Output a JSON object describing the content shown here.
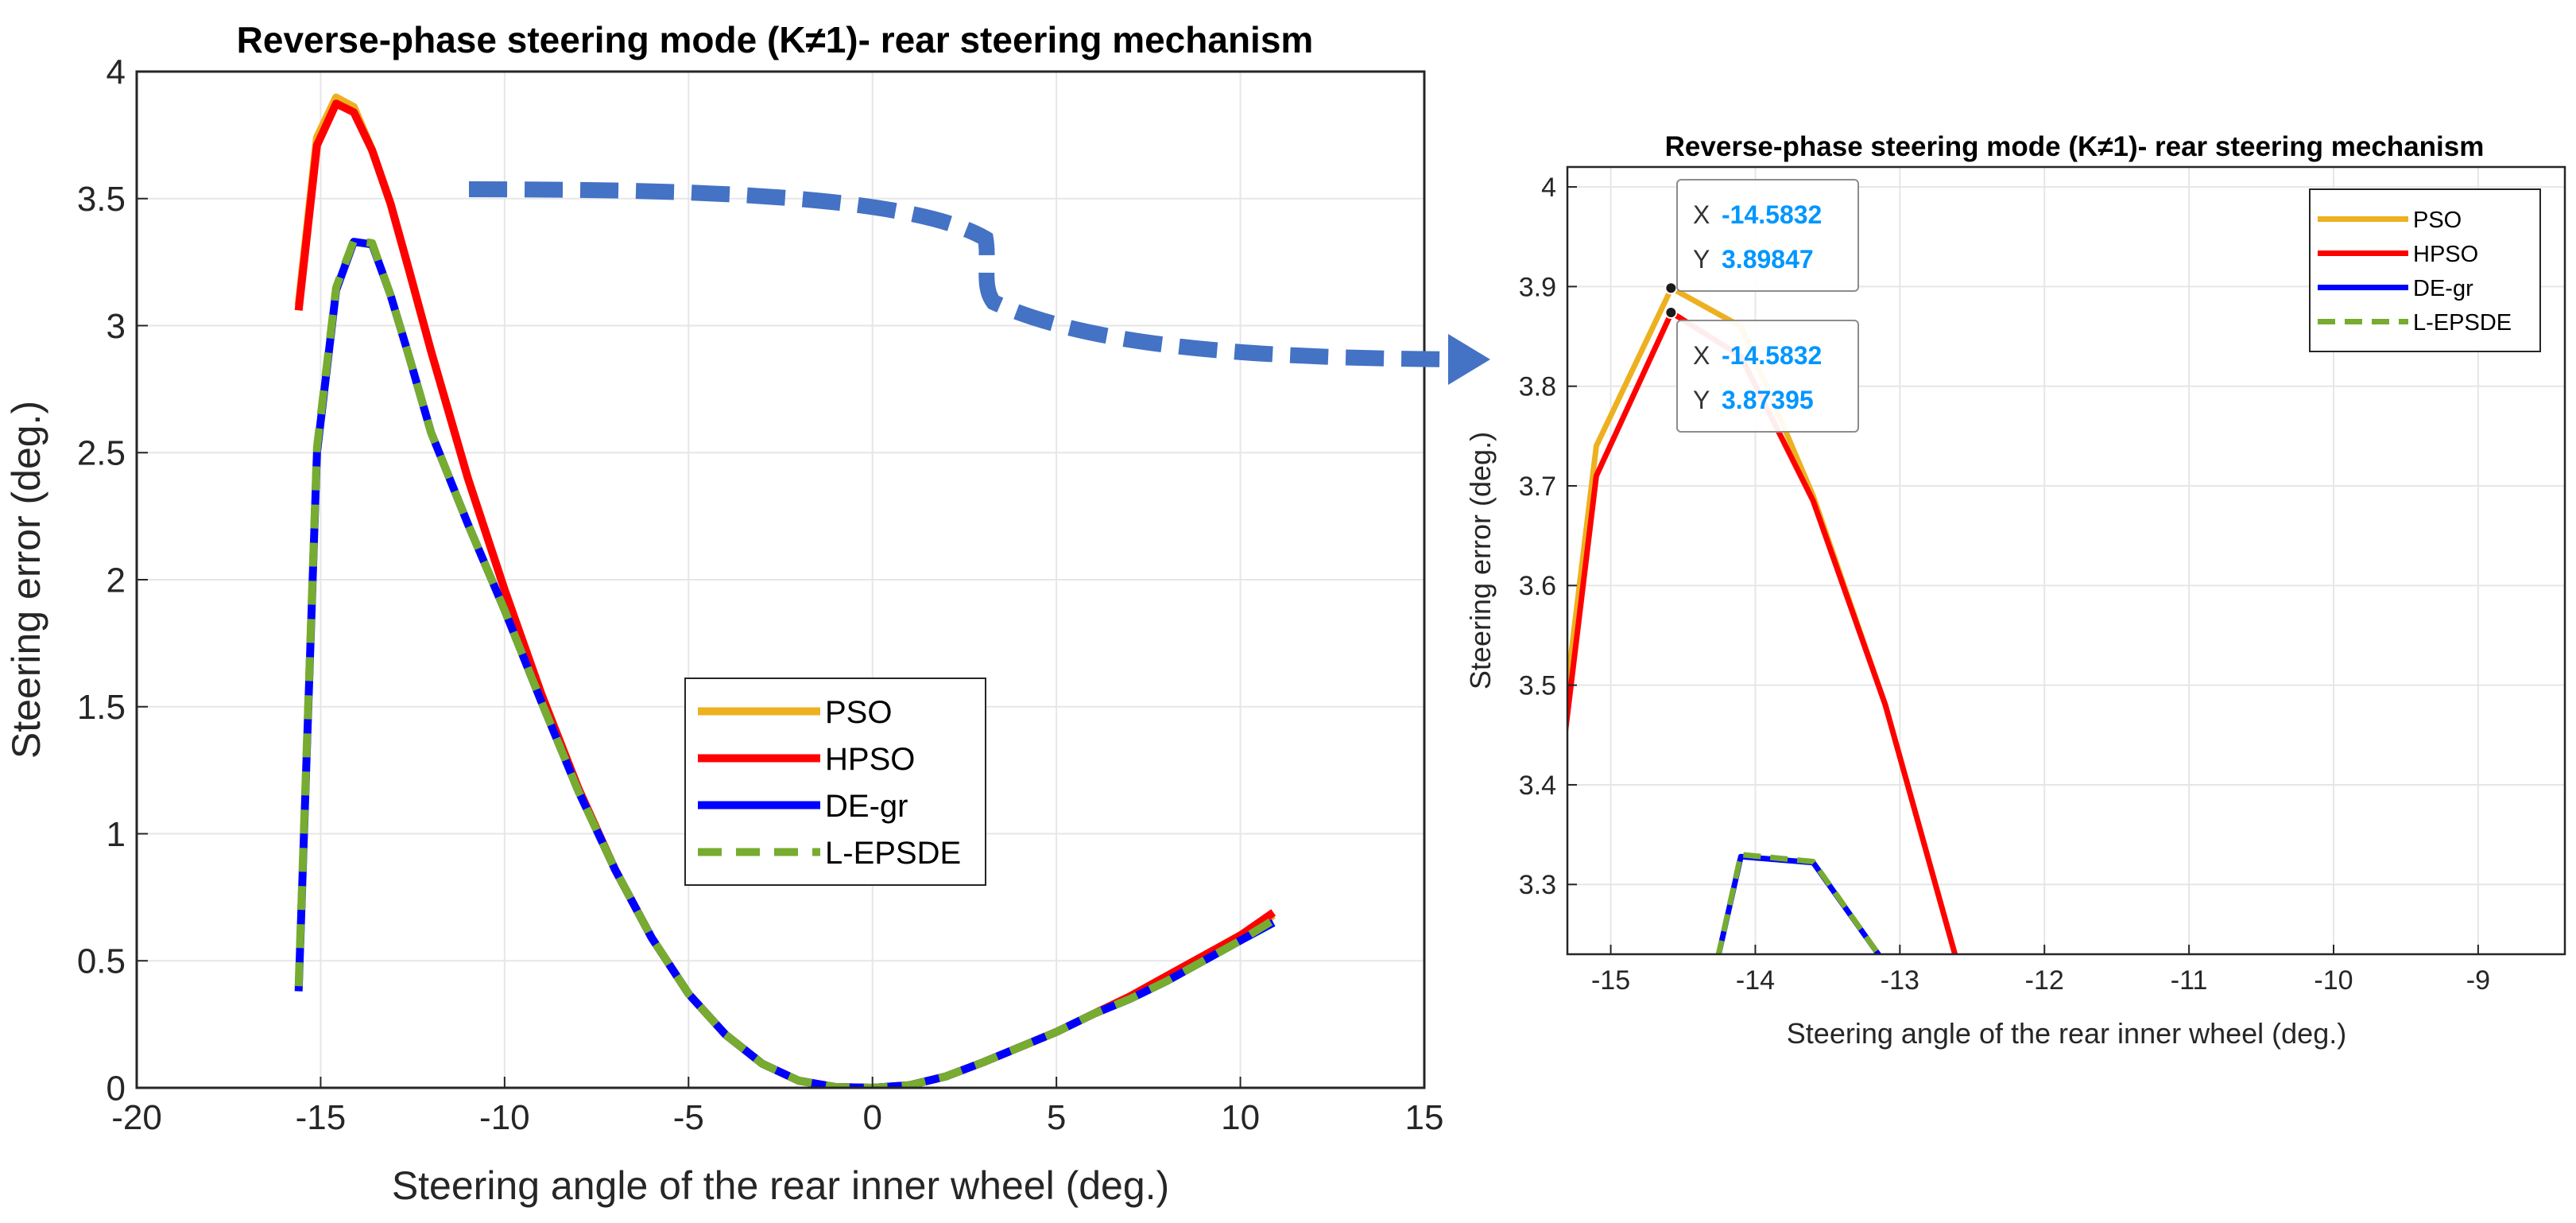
{
  "chart_data": [
    {
      "type": "line",
      "title": "Reverse-phase steering mode (K≠1)- rear steering mechanism",
      "xlabel": "Steering angle of the rear inner wheel (deg.)",
      "ylabel": "Steering error (deg.)",
      "xlim": [
        -20,
        15
      ],
      "ylim": [
        0,
        4
      ],
      "xticks": [
        "-20",
        "-15",
        "-10",
        "-5",
        "0",
        "5",
        "10",
        "15"
      ],
      "yticks": [
        "0",
        "0.5",
        "1",
        "1.5",
        "2",
        "2.5",
        "3",
        "3.5",
        "4"
      ],
      "grid": true,
      "legend_position": "center-right",
      "series": [
        {
          "name": "PSO",
          "color": "#EDB120",
          "style": "solid",
          "x": [
            -15.6,
            -15.1,
            -14.58,
            -14.1,
            -13.6,
            -13.1,
            -12.6,
            -12.0,
            -11.0,
            -10.0,
            -9.0,
            -8.0,
            -7.0,
            -6.0,
            -5.0,
            -4.0,
            -3.0,
            -2.0,
            -1.0,
            0.0,
            1.0,
            2.0,
            3.0,
            4.0,
            5.0,
            6.0,
            7.0,
            8.0,
            9.0,
            10.0,
            10.9
          ],
          "y": [
            3.08,
            3.74,
            3.898,
            3.86,
            3.69,
            3.48,
            3.22,
            2.9,
            2.4,
            1.96,
            1.55,
            1.18,
            0.86,
            0.59,
            0.37,
            0.21,
            0.095,
            0.028,
            0.003,
            0.0,
            0.01,
            0.045,
            0.1,
            0.16,
            0.22,
            0.29,
            0.36,
            0.44,
            0.52,
            0.6,
            0.68
          ]
        },
        {
          "name": "HPSO",
          "color": "#FF0000",
          "style": "solid",
          "x": [
            -15.6,
            -15.1,
            -14.58,
            -14.1,
            -13.6,
            -13.1,
            -12.6,
            -12.0,
            -11.0,
            -10.0,
            -9.0,
            -8.0,
            -7.0,
            -6.0,
            -5.0,
            -4.0,
            -3.0,
            -2.0,
            -1.0,
            0.0,
            1.0,
            2.0,
            3.0,
            4.0,
            5.0,
            6.0,
            7.0,
            8.0,
            9.0,
            10.0,
            10.9
          ],
          "y": [
            3.06,
            3.71,
            3.874,
            3.84,
            3.69,
            3.48,
            3.22,
            2.9,
            2.4,
            1.96,
            1.55,
            1.18,
            0.86,
            0.59,
            0.37,
            0.21,
            0.095,
            0.028,
            0.003,
            0.0,
            0.01,
            0.045,
            0.1,
            0.16,
            0.22,
            0.29,
            0.36,
            0.44,
            0.52,
            0.6,
            0.69
          ]
        },
        {
          "name": "DE-gr",
          "color": "#0000FF",
          "style": "solid",
          "x": [
            -15.6,
            -15.1,
            -14.58,
            -14.1,
            -13.6,
            -13.1,
            -12.6,
            -12.0,
            -11.0,
            -10.0,
            -9.0,
            -8.0,
            -7.0,
            -6.0,
            -5.0,
            -4.0,
            -3.0,
            -2.0,
            -1.0,
            0.0,
            1.0,
            2.0,
            3.0,
            4.0,
            5.0,
            6.0,
            7.0,
            8.0,
            9.0,
            10.0,
            10.9
          ],
          "y": [
            0.38,
            2.5,
            3.14,
            3.33,
            3.32,
            3.12,
            2.88,
            2.58,
            2.22,
            1.88,
            1.52,
            1.17,
            0.86,
            0.59,
            0.37,
            0.21,
            0.095,
            0.028,
            0.003,
            0.0,
            0.01,
            0.045,
            0.1,
            0.16,
            0.22,
            0.29,
            0.35,
            0.42,
            0.5,
            0.58,
            0.65
          ]
        },
        {
          "name": "L-EPSDE",
          "color": "#77AC30",
          "style": "dashed",
          "x": [
            -15.6,
            -15.1,
            -14.58,
            -14.1,
            -13.6,
            -13.1,
            -12.6,
            -12.0,
            -11.0,
            -10.0,
            -9.0,
            -8.0,
            -7.0,
            -6.0,
            -5.0,
            -4.0,
            -3.0,
            -2.0,
            -1.0,
            0.0,
            1.0,
            2.0,
            3.0,
            4.0,
            5.0,
            6.0,
            7.0,
            8.0,
            9.0,
            10.0,
            10.9
          ],
          "y": [
            0.4,
            2.52,
            3.15,
            3.335,
            3.325,
            3.12,
            2.88,
            2.58,
            2.22,
            1.88,
            1.52,
            1.17,
            0.86,
            0.59,
            0.37,
            0.21,
            0.095,
            0.028,
            0.003,
            0.0,
            0.01,
            0.045,
            0.1,
            0.16,
            0.22,
            0.29,
            0.35,
            0.42,
            0.5,
            0.58,
            0.66
          ]
        }
      ]
    },
    {
      "type": "line",
      "title": "Reverse-phase steering mode (K≠1)- rear steering mechanism",
      "xlabel": "Steering angle of the rear inner wheel (deg.)",
      "ylabel": "Steering error (deg.)",
      "xlim": [
        -15.3,
        -8.4
      ],
      "ylim": [
        3.23,
        4.02
      ],
      "xticks": [
        "-15",
        "-14",
        "-13",
        "-12",
        "-11",
        "-10",
        "-9"
      ],
      "yticks": [
        "3.3",
        "3.4",
        "3.5",
        "3.6",
        "3.7",
        "3.8",
        "3.9",
        "4"
      ],
      "grid": true,
      "legend_position": "top-right",
      "series": [
        {
          "name": "PSO",
          "color": "#EDB120",
          "style": "solid",
          "x": [
            -15.35,
            -15.1,
            -14.58,
            -14.1,
            -13.6,
            -13.1,
            -12.6
          ],
          "y": [
            3.44,
            3.74,
            3.89847,
            3.86,
            3.69,
            3.48,
            3.22
          ]
        },
        {
          "name": "HPSO",
          "color": "#FF0000",
          "style": "solid",
          "x": [
            -15.35,
            -15.1,
            -14.58,
            -14.1,
            -13.6,
            -13.1,
            -12.6
          ],
          "y": [
            3.41,
            3.71,
            3.87395,
            3.83,
            3.685,
            3.48,
            3.22
          ]
        },
        {
          "name": "DE-gr",
          "color": "#0000FF",
          "style": "solid",
          "x": [
            -14.3,
            -14.1,
            -13.6,
            -13.1
          ],
          "y": [
            3.2,
            3.328,
            3.322,
            3.22
          ]
        },
        {
          "name": "L-EPSDE",
          "color": "#77AC30",
          "style": "dashed",
          "x": [
            -14.3,
            -14.1,
            -13.6,
            -13.1
          ],
          "y": [
            3.2,
            3.33,
            3.323,
            3.22
          ]
        }
      ],
      "datatips": [
        {
          "x_label": "X",
          "x_value": "-14.5832",
          "y_label": "Y",
          "y_value": "3.89847",
          "series": "PSO",
          "x": -14.5832,
          "y": 3.89847
        },
        {
          "x_label": "X",
          "x_value": "-14.5832",
          "y_label": "Y",
          "y_value": "3.87395",
          "series": "HPSO",
          "x": -14.5832,
          "y": 3.87395
        }
      ]
    }
  ],
  "colors": {
    "arrow": "#4472C4",
    "grid": "#E6E6E6",
    "axis": "#262626",
    "datatip_value": "#0096FF"
  }
}
